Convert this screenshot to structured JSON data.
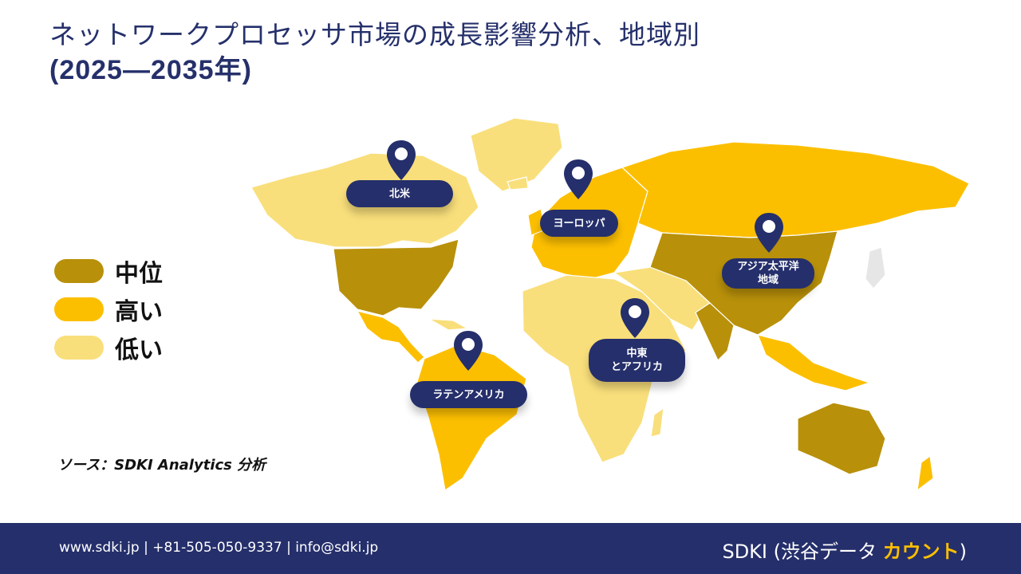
{
  "title": {
    "line1": "ネットワークプロセッサ市場の成長影響分析、地域別",
    "line2": "(2025—2035年)"
  },
  "legend": [
    {
      "label": "中位",
      "color": "#b8900a"
    },
    {
      "label": "高い",
      "color": "#fcbf00"
    },
    {
      "label": "低い",
      "color": "#f9df7b"
    }
  ],
  "regions": [
    {
      "label": "北米"
    },
    {
      "label": "ヨーロッパ"
    },
    {
      "label": "アジア太平洋\n地域"
    },
    {
      "label": "中東\nとアフリカ"
    },
    {
      "label": "ラテンアメリカ"
    }
  ],
  "source": "ソース：SDKI Analytics 分析",
  "footer": {
    "contact": "www.sdki.jp | +81-505-050-9337 | info@sdki.jp",
    "brand_prefix": "SDKI (渋谷データ ",
    "brand_accent": "カウント",
    "brand_suffix": ")"
  },
  "colors": {
    "navy": "#252f6b",
    "medium": "#b8900a",
    "high": "#fcbf00",
    "low": "#f9df7b"
  }
}
